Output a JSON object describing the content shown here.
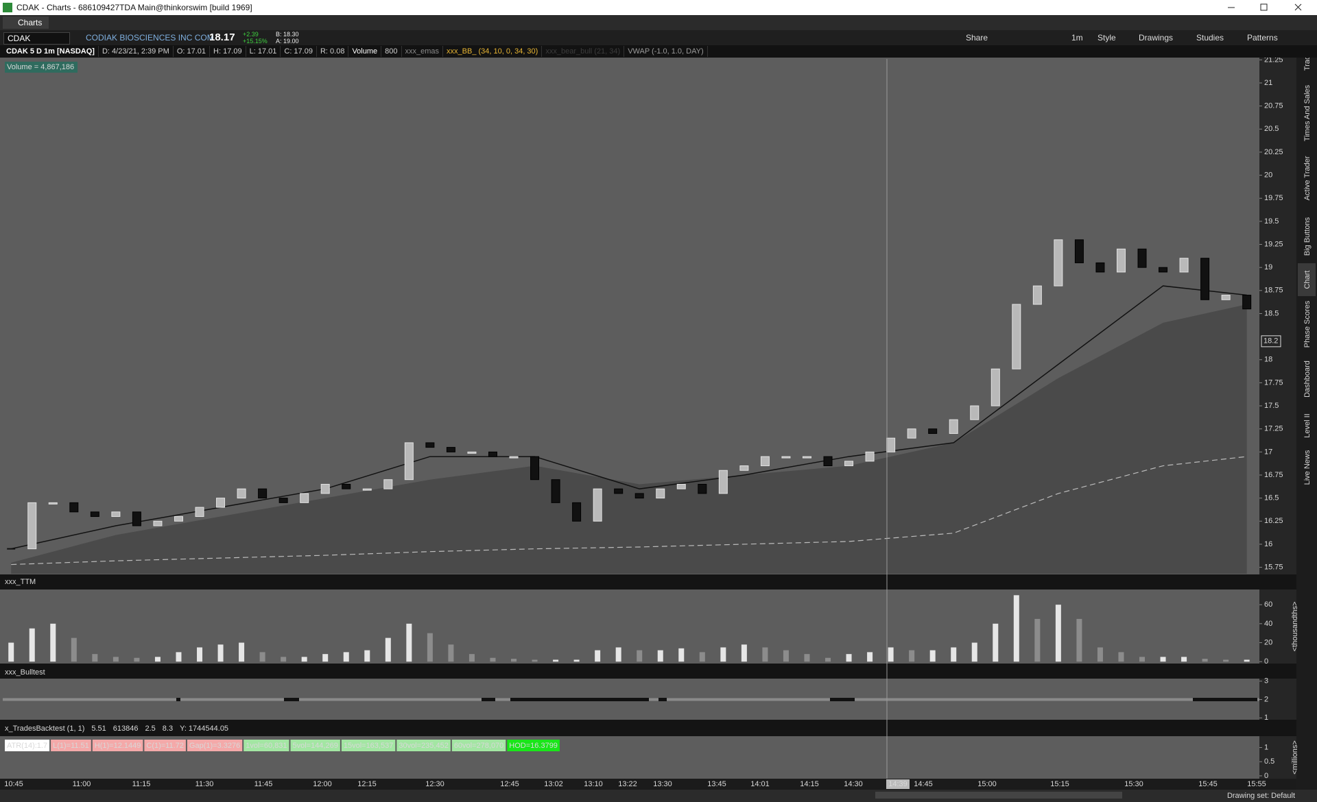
{
  "window": {
    "title": "CDAK - Charts - 686109427TDA Main@thinkorswim [build 1969]",
    "tab": "Charts"
  },
  "toolbar": {
    "symbol": "CDAK",
    "company": "CODIAK BIOSCIENCES INC COM",
    "last": "18.17",
    "change": "+2.39",
    "change_pct": "+15.15%",
    "bid": "B: 18.30",
    "ask": "A: 19.00",
    "aggregation": "1m",
    "buttons": [
      "Share",
      "Style",
      "Drawings",
      "Studies",
      "Patterns"
    ]
  },
  "chart_header": [
    {
      "text": "CDAK 5 D 1m [NASDAQ]",
      "color": "#ffffff"
    },
    {
      "text": "D: 4/23/21, 2:39 PM",
      "color": "#cfcfcf"
    },
    {
      "text": "O: 17.01",
      "color": "#cfcfcf"
    },
    {
      "text": "H: 17.09",
      "color": "#cfcfcf"
    },
    {
      "text": "L: 17.01",
      "color": "#cfcfcf"
    },
    {
      "text": "C: 17.09",
      "color": "#cfcfcf"
    },
    {
      "text": "R: 0.08",
      "color": "#cfcfcf"
    },
    {
      "text": "Volume",
      "color": "#ffffff"
    },
    {
      "text": "800",
      "color": "#cfcfcf"
    },
    {
      "text": "xxx_emas",
      "color": "#8a8a8a"
    },
    {
      "text": "xxx_BB_ (34, 10, 0, 34, 30)",
      "color": "#e8b533"
    },
    {
      "text": "xxx_bear_bull (21, 34)",
      "color": "#3c3c3c"
    },
    {
      "text": "VWAP (-1.0, 1.0, DAY)",
      "color": "#9a9a9a"
    }
  ],
  "price_panel": {
    "volume_label": "Volume = 4,867,186",
    "last_price_label": 18.2,
    "ylim": [
      15.68,
      21.26
    ],
    "yticks": [
      21.25,
      21,
      20.75,
      20.5,
      20.25,
      20,
      19.75,
      19.5,
      19.25,
      19,
      18.75,
      18.5,
      18,
      17.75,
      17.5,
      17.25,
      17,
      16.75,
      16.5,
      16.25,
      16,
      15.75
    ],
    "closes": [
      15.95,
      16.45,
      16.45,
      16.35,
      16.3,
      16.35,
      16.2,
      16.25,
      16.3,
      16.4,
      16.5,
      16.6,
      16.5,
      16.45,
      16.55,
      16.65,
      16.6,
      16.6,
      16.7,
      17.1,
      17.05,
      17.0,
      17.0,
      16.95,
      16.95,
      16.7,
      16.45,
      16.25,
      16.6,
      16.55,
      16.5,
      16.6,
      16.65,
      16.55,
      16.8,
      16.85,
      16.95,
      16.95,
      16.95,
      16.85,
      16.9,
      17.0,
      17.15,
      17.25,
      17.2,
      17.35,
      17.5,
      17.9,
      18.6,
      18.8,
      19.3,
      19.05,
      18.95,
      19.2,
      19.0,
      18.95,
      19.1,
      18.65,
      18.7,
      18.55
    ],
    "fill": [
      15.8,
      16.1,
      16.3,
      16.5,
      16.7,
      16.85,
      16.65,
      16.75,
      16.85,
      17.1,
      17.8,
      18.4,
      18.6
    ],
    "slow_line": [
      15.95,
      16.2,
      16.4,
      16.6,
      16.95,
      16.95,
      16.6,
      16.75,
      16.95,
      17.1,
      17.95,
      18.8,
      18.7
    ],
    "vwap": [
      15.78,
      15.82,
      15.85,
      15.88,
      15.92,
      15.95,
      15.97,
      16.0,
      16.03,
      16.12,
      16.55,
      16.85,
      16.95
    ]
  },
  "ttm_panel": {
    "title": "xxx_TTM",
    "axis_label": "<thousandths>",
    "ylim": [
      -2,
      76
    ],
    "yticks": [
      0,
      20,
      40,
      60
    ],
    "values": [
      20,
      35,
      40,
      25,
      8,
      5,
      4,
      5,
      10,
      15,
      18,
      20,
      10,
      5,
      5,
      8,
      10,
      12,
      25,
      40,
      30,
      18,
      8,
      4,
      3,
      2,
      2,
      2,
      12,
      15,
      12,
      12,
      14,
      10,
      15,
      18,
      15,
      12,
      8,
      4,
      8,
      10,
      15,
      12,
      12,
      15,
      20,
      40,
      70,
      45,
      60,
      45,
      15,
      10,
      5,
      5,
      5,
      3,
      2,
      2
    ]
  },
  "bulltest_panel": {
    "title": "xxx_Bulltest",
    "ylim": [
      0.9,
      3.1
    ],
    "yticks": [
      1,
      2,
      3
    ]
  },
  "backtest_panel": {
    "header": [
      {
        "text": "x_TradesBacktest (1, 1)",
        "color": "#8a8a8a"
      },
      {
        "text": "5.51",
        "color": "#8a8a8a"
      },
      {
        "text": "613846",
        "color": "#e0e0e0"
      },
      {
        "text": "2.5",
        "color": "#f0c419"
      },
      {
        "text": "8.3",
        "color": "#36d336"
      },
      {
        "text": "Y: 1744544.05",
        "color": "#e0e0e0"
      }
    ],
    "badges": [
      {
        "text": "ATR(14):1.7",
        "color": "#ffffff"
      },
      {
        "text": "L(1)=11.51",
        "color": "#f4a9a9"
      },
      {
        "text": "H(1)=12.1449",
        "color": "#f4a9a9"
      },
      {
        "text": "C(1)=11.72",
        "color": "#f4a9a9"
      },
      {
        "text": "Gap(1)=3.3276",
        "color": "#f4a9a9"
      },
      {
        "text": "1vol=60,831",
        "color": "#a3e6a3"
      },
      {
        "text": "5vol=144,269",
        "color": "#a3e6a3"
      },
      {
        "text": "15vol=163,537",
        "color": "#a3e6a3"
      },
      {
        "text": "30vol=235,452",
        "color": "#a3e6a3"
      },
      {
        "text": "60vol=278,070",
        "color": "#a3e6a3"
      },
      {
        "text": "HOD=16.3799",
        "color": "#19e619"
      }
    ],
    "axis_label": "<millions>",
    "ylim": [
      -0.1,
      1.4
    ],
    "yticks": [
      0,
      0.5,
      1
    ]
  },
  "time_axis": {
    "labels": [
      "10:45",
      "11:00",
      "11:15",
      "11:30",
      "11:45",
      "12:00",
      "12:15",
      "12:30",
      "12:45",
      "13:02",
      "13:10",
      "13:22",
      "13:30",
      "13:45",
      "14:01",
      "14:15",
      "14:30",
      "14:45",
      "15:00",
      "15:15",
      "15:30",
      "15:45",
      "15:55"
    ],
    "cursor": "14:39"
  },
  "sidebar_tabs": [
    "Trade",
    "Times And Sales",
    "Active Trader",
    "Big Buttons",
    "Chart",
    "Phase Scores",
    "Dashboard",
    "Level II",
    "Live News"
  ],
  "status": "Drawing set: Default"
}
